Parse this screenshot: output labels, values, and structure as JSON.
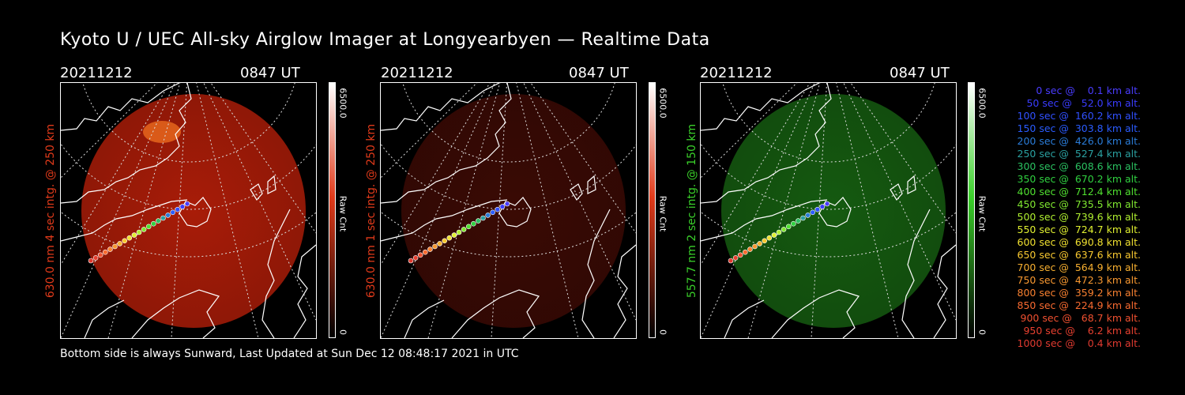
{
  "title": "Kyoto U / UEC All-sky Airglow Imager at Longyearbyen — Realtime Data",
  "footer": "Bottom side is always Sunward, Last Updated at Sun Dec 12 08:48:17 2021 in UTC",
  "panels": [
    {
      "date": "20211212",
      "time": "0847 UT",
      "side_label": "630.0 nm 4 sec intg. @ 250 km",
      "colorbar_max": "6500.0",
      "colorbar_min": "0",
      "colorbar_unit": "Raw Cnt",
      "color": "#e03a1a",
      "glow": "#a81c08"
    },
    {
      "date": "20211212",
      "time": "0847 UT",
      "side_label": "630.0 nm 1 sec intg. @ 250 km",
      "colorbar_max": "6500.0",
      "colorbar_min": "0",
      "colorbar_unit": "Raw Cnt",
      "color": "#e03a1a",
      "glow": "#3a0a04"
    },
    {
      "date": "20211212",
      "time": "0847 UT",
      "side_label": "557.7 nm 2 sec intg. @ 150 km",
      "colorbar_max": "6500.0",
      "colorbar_min": "0",
      "colorbar_unit": "Raw Cnt",
      "color": "#3ad02a",
      "glow": "#155a10"
    }
  ],
  "legend": [
    {
      "text": "   0 sec @    0.1 km alt.",
      "color": "#4a3cff"
    },
    {
      "text": "  50 sec @   52.0 km alt.",
      "color": "#3a3cff"
    },
    {
      "text": " 100 sec @  160.2 km alt.",
      "color": "#3050ff"
    },
    {
      "text": " 150 sec @  303.8 km alt.",
      "color": "#2a5cff"
    },
    {
      "text": " 200 sec @  426.0 km alt.",
      "color": "#2a7cd8"
    },
    {
      "text": " 250 sec @  527.4 km alt.",
      "color": "#2aa0a0"
    },
    {
      "text": " 300 sec @  608.6 km alt.",
      "color": "#2ac060"
    },
    {
      "text": " 350 sec @  670.2 km alt.",
      "color": "#30d040"
    },
    {
      "text": " 400 sec @  712.4 km alt.",
      "color": "#50e030"
    },
    {
      "text": " 450 sec @  735.5 km alt.",
      "color": "#80e830"
    },
    {
      "text": " 500 sec @  739.6 km alt.",
      "color": "#b0f030"
    },
    {
      "text": " 550 sec @  724.7 km alt.",
      "color": "#e0f030"
    },
    {
      "text": " 600 sec @  690.8 km alt.",
      "color": "#f0e030"
    },
    {
      "text": " 650 sec @  637.6 km alt.",
      "color": "#f8c830"
    },
    {
      "text": " 700 sec @  564.9 km alt.",
      "color": "#f8b030"
    },
    {
      "text": " 750 sec @  472.3 km alt.",
      "color": "#f89830"
    },
    {
      "text": " 800 sec @  359.2 km alt.",
      "color": "#f88030"
    },
    {
      "text": " 850 sec @  224.9 km alt.",
      "color": "#f86a30"
    },
    {
      "text": " 900 sec @   68.7 km alt.",
      "color": "#f05030"
    },
    {
      "text": " 950 sec @    6.2 km alt.",
      "color": "#e84030"
    },
    {
      "text": "1000 sec @    0.4 km alt.",
      "color": "#e03a30"
    }
  ]
}
